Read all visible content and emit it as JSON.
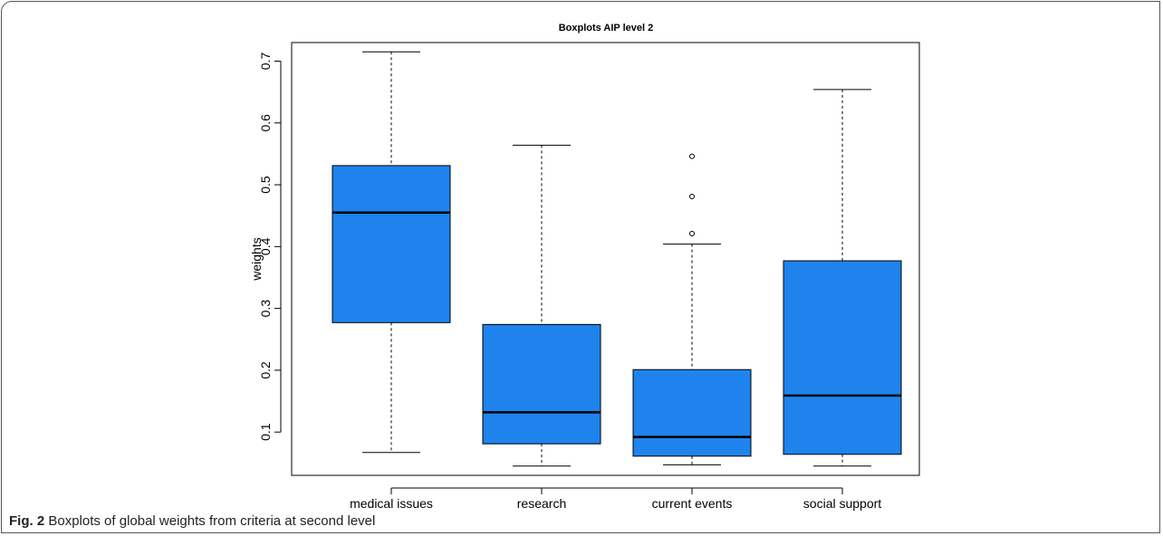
{
  "caption": {
    "label": "Fig. 2",
    "text": "Boxplots of global weights from criteria at second level"
  },
  "colors": {
    "box_fill": "#1E83EC",
    "box_stroke": "#000000",
    "median": "#000000",
    "axis": "#000000"
  },
  "chart_data": {
    "type": "boxplot",
    "title": "Boxplots AIP level 2",
    "xlabel": "",
    "ylabel": "weights",
    "ylim": [
      0.03,
      0.73
    ],
    "yticks": [
      0.1,
      0.2,
      0.3,
      0.4,
      0.5,
      0.6,
      0.7
    ],
    "ytick_labels": [
      "0.1",
      "0.2",
      "0.3",
      "0.4",
      "0.5",
      "0.6",
      "0.7"
    ],
    "categories": [
      "medical issues",
      "research",
      "current events",
      "social support"
    ],
    "boxes": [
      {
        "name": "medical issues",
        "whisker_low": 0.067,
        "q1": 0.277,
        "median": 0.455,
        "q3": 0.531,
        "whisker_high": 0.715,
        "outliers": []
      },
      {
        "name": "research",
        "whisker_low": 0.045,
        "q1": 0.081,
        "median": 0.132,
        "q3": 0.274,
        "whisker_high": 0.564,
        "outliers": []
      },
      {
        "name": "current events",
        "whisker_low": 0.047,
        "q1": 0.061,
        "median": 0.092,
        "q3": 0.201,
        "whisker_high": 0.404,
        "outliers": [
          0.421,
          0.481,
          0.546
        ]
      },
      {
        "name": "social support",
        "whisker_low": 0.045,
        "q1": 0.064,
        "median": 0.159,
        "q3": 0.377,
        "whisker_high": 0.654,
        "outliers": []
      }
    ],
    "grid": false,
    "legend": "none"
  }
}
